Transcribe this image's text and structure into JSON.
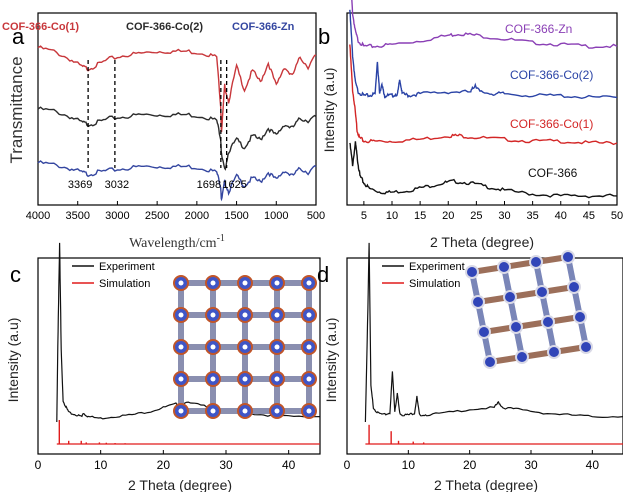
{
  "chart_data": [
    {
      "panel": "a",
      "type": "line",
      "xlabel": "Wavelength/cm",
      "xlabel_sup": "-1",
      "ylabel": "Transmittance",
      "xlim": [
        4000,
        500
      ],
      "xticks": [
        "4000",
        "3500",
        "3000",
        "2500",
        "2000",
        "1500",
        "1000",
        "500"
      ],
      "x_reverse": true,
      "series": [
        {
          "name": "COF-366-Co(1)",
          "color": "#c8373b",
          "offset": 0.82,
          "x": [
            4000,
            3800,
            3600,
            3450,
            3369,
            3250,
            3100,
            2900,
            2700,
            2500,
            2300,
            2100,
            1900,
            1750,
            1700,
            1690,
            1650,
            1600,
            1500,
            1400,
            1300,
            1200,
            1100,
            1000,
            900,
            800,
            700,
            600,
            500
          ],
          "y": [
            0.0,
            -0.02,
            -0.06,
            -0.1,
            -0.11,
            -0.09,
            -0.06,
            -0.04,
            -0.03,
            -0.02,
            -0.02,
            -0.02,
            -0.03,
            -0.05,
            -0.3,
            -0.45,
            -0.2,
            -0.28,
            -0.1,
            -0.22,
            -0.12,
            -0.18,
            -0.08,
            -0.2,
            -0.1,
            -0.15,
            -0.05,
            -0.1,
            -0.04
          ]
        },
        {
          "name": "COF-366-Co(2)",
          "color": "#2b2b2b",
          "offset": 0.5,
          "x": [
            4000,
            3800,
            3600,
            3450,
            3369,
            3250,
            3100,
            2900,
            2700,
            2500,
            2300,
            2100,
            1900,
            1750,
            1700,
            1690,
            1650,
            1600,
            1500,
            1400,
            1300,
            1200,
            1100,
            1000,
            900,
            800,
            700,
            600,
            500
          ],
          "y": [
            0.0,
            -0.01,
            -0.04,
            -0.07,
            -0.08,
            -0.07,
            -0.05,
            -0.04,
            -0.03,
            -0.03,
            -0.03,
            -0.03,
            -0.04,
            -0.06,
            -0.15,
            -0.24,
            -0.32,
            -0.22,
            -0.16,
            -0.2,
            -0.14,
            -0.16,
            -0.1,
            -0.14,
            -0.08,
            -0.1,
            -0.05,
            -0.06,
            -0.04
          ]
        },
        {
          "name": "COF-366-Zn",
          "color": "#3446a0",
          "offset": 0.22,
          "x": [
            4000,
            3800,
            3600,
            3450,
            3369,
            3250,
            3100,
            2900,
            2700,
            2500,
            2300,
            2100,
            1900,
            1750,
            1700,
            1690,
            1650,
            1600,
            1500,
            1400,
            1300,
            1200,
            1100,
            1000,
            900,
            800,
            700,
            600,
            500
          ],
          "y": [
            0.0,
            -0.01,
            -0.03,
            -0.05,
            -0.06,
            -0.05,
            -0.04,
            -0.03,
            -0.02,
            -0.02,
            -0.02,
            -0.02,
            -0.03,
            -0.05,
            -0.12,
            -0.2,
            -0.1,
            -0.15,
            -0.07,
            -0.12,
            -0.08,
            -0.1,
            -0.05,
            -0.09,
            -0.04,
            -0.07,
            -0.03,
            -0.05,
            -0.02
          ]
        }
      ],
      "annotations": [
        "3369",
        "3032",
        "1698",
        "1625"
      ],
      "annotation_positions": [
        3369,
        3032,
        1698,
        1625
      ]
    },
    {
      "panel": "b",
      "type": "line",
      "xlabel": "2 Theta (degree)",
      "ylabel": "Intensity (a.u)",
      "xlim": [
        2,
        50
      ],
      "xticks": [
        "5",
        "10",
        "15",
        "20",
        "25",
        "30",
        "35",
        "40",
        "45",
        "50"
      ],
      "series": [
        {
          "name": "COF-366-Zn",
          "color": "#8a3fb5",
          "offset": 0.85,
          "x": [
            2.5,
            3.0,
            3.5,
            4.0,
            5,
            7,
            10,
            15,
            20,
            22,
            25,
            30,
            35,
            40,
            45,
            50
          ],
          "y": [
            0.45,
            0.2,
            0.1,
            0.05,
            0.02,
            0.02,
            0.03,
            0.05,
            0.08,
            0.09,
            0.08,
            0.06,
            0.04,
            0.03,
            0.02,
            0.02
          ]
        },
        {
          "name": "COF-366-Co(2)",
          "color": "#2a43a6",
          "offset": 0.57,
          "x": [
            2.5,
            3.0,
            3.5,
            4.0,
            5,
            6,
            7.0,
            7.4,
            7.8,
            8.2,
            8.6,
            9,
            10,
            11.0,
            11.4,
            11.8,
            13,
            15,
            20,
            24,
            24.8,
            25.6,
            28,
            30,
            35,
            40,
            45,
            50
          ],
          "y": [
            0.5,
            0.25,
            0.1,
            0.05,
            0.03,
            0.03,
            0.04,
            0.22,
            0.04,
            0.1,
            0.03,
            0.03,
            0.03,
            0.04,
            0.12,
            0.04,
            0.03,
            0.04,
            0.05,
            0.05,
            0.09,
            0.05,
            0.04,
            0.04,
            0.03,
            0.03,
            0.02,
            0.02
          ]
        },
        {
          "name": "COF-366-Co(1)",
          "color": "#d32626",
          "offset": 0.33,
          "x": [
            2.5,
            3.0,
            3.4,
            3.8,
            4.2,
            5,
            7,
            10,
            15,
            20,
            22,
            25,
            30,
            35,
            40,
            45,
            50
          ],
          "y": [
            0.55,
            0.3,
            0.2,
            0.08,
            0.04,
            0.02,
            0.02,
            0.02,
            0.03,
            0.05,
            0.05,
            0.04,
            0.03,
            0.02,
            0.02,
            0.01,
            0.01
          ]
        },
        {
          "name": "COF-366",
          "color": "#111111",
          "offset": 0.04,
          "x": [
            2.5,
            3.0,
            3.5,
            3.9,
            4.3,
            5,
            6,
            8,
            10,
            13,
            16,
            19,
            21,
            24,
            27,
            30,
            35,
            40,
            45,
            50
          ],
          "y": [
            0.3,
            0.18,
            0.3,
            0.2,
            0.12,
            0.08,
            0.05,
            0.03,
            0.03,
            0.04,
            0.06,
            0.08,
            0.09,
            0.08,
            0.06,
            0.04,
            0.02,
            0.01,
            0.01,
            0.01
          ]
        }
      ]
    },
    {
      "panel": "c",
      "type": "line",
      "xlabel": "2 Theta (degree)",
      "ylabel": "Intensity (a.u)",
      "xlim": [
        0,
        45
      ],
      "xticks": [
        "0",
        "10",
        "20",
        "30",
        "40"
      ],
      "legend": [
        "Experiment",
        "Simulation"
      ],
      "series": [
        {
          "name": "Experiment",
          "color": "#111111",
          "x": [
            3.0,
            3.2,
            3.45,
            3.7,
            4.0,
            4.5,
            5,
            6,
            7,
            7.2,
            8,
            10,
            12,
            15,
            18,
            20,
            22,
            23,
            25,
            28,
            30,
            33,
            36,
            40,
            45
          ],
          "y": [
            0.0,
            0.5,
            1.0,
            0.4,
            0.12,
            0.08,
            0.05,
            0.04,
            0.03,
            0.05,
            0.03,
            0.02,
            0.03,
            0.04,
            0.06,
            0.08,
            0.1,
            0.11,
            0.1,
            0.08,
            0.06,
            0.05,
            0.04,
            0.03,
            0.03
          ]
        },
        {
          "name": "Simulation",
          "color": "#e01b1b",
          "sticks_x": [
            3.4,
            4.9,
            6.9,
            7.7,
            9.8,
            10.9,
            12.3,
            13.9
          ],
          "sticks_y": [
            0.15,
            0.02,
            0.02,
            0.01,
            0.01,
            0.008,
            0.006,
            0.005
          ]
        }
      ]
    },
    {
      "panel": "d",
      "type": "line",
      "xlabel": "2 Theta (degree)",
      "ylabel": "Intensity (a.u)",
      "xlim": [
        0,
        45
      ],
      "xticks": [
        "0",
        "10",
        "20",
        "30",
        "40"
      ],
      "legend": [
        "Experiment",
        "Simulation"
      ],
      "series": [
        {
          "name": "Experiment",
          "color": "#111111",
          "x": [
            3.0,
            3.3,
            3.6,
            3.9,
            4.3,
            5,
            6,
            7.0,
            7.4,
            7.8,
            8.2,
            8.6,
            9.0,
            10,
            11.0,
            11.4,
            11.8,
            13,
            16,
            20,
            24,
            24.7,
            25.4,
            28,
            32,
            36,
            40,
            45
          ],
          "y": [
            0.0,
            0.45,
            1.0,
            0.2,
            0.08,
            0.05,
            0.04,
            0.05,
            0.28,
            0.06,
            0.16,
            0.05,
            0.04,
            0.04,
            0.05,
            0.14,
            0.04,
            0.04,
            0.05,
            0.07,
            0.08,
            0.11,
            0.08,
            0.07,
            0.05,
            0.04,
            0.03,
            0.03
          ]
        },
        {
          "name": "Simulation",
          "color": "#e01b1b",
          "sticks_x": [
            3.6,
            7.2,
            8.4,
            10.8,
            12.5
          ],
          "sticks_y": [
            0.12,
            0.08,
            0.02,
            0.015,
            0.01
          ]
        }
      ]
    }
  ],
  "panel_labels": [
    "a",
    "b",
    "c",
    "d"
  ],
  "colors": {
    "axis": "#000000",
    "background": "#ffffff"
  }
}
